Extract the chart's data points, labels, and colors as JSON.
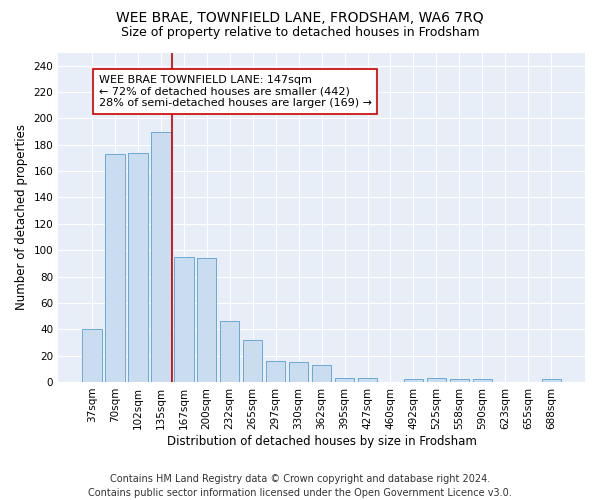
{
  "title": "WEE BRAE, TOWNFIELD LANE, FRODSHAM, WA6 7RQ",
  "subtitle": "Size of property relative to detached houses in Frodsham",
  "xlabel": "Distribution of detached houses by size in Frodsham",
  "ylabel": "Number of detached properties",
  "categories": [
    "37sqm",
    "70sqm",
    "102sqm",
    "135sqm",
    "167sqm",
    "200sqm",
    "232sqm",
    "265sqm",
    "297sqm",
    "330sqm",
    "362sqm",
    "395sqm",
    "427sqm",
    "460sqm",
    "492sqm",
    "525sqm",
    "558sqm",
    "590sqm",
    "623sqm",
    "655sqm",
    "688sqm"
  ],
  "values": [
    40,
    173,
    174,
    190,
    95,
    94,
    46,
    32,
    16,
    15,
    13,
    3,
    3,
    0,
    2,
    3,
    2,
    2,
    0,
    0,
    2
  ],
  "bar_color": "#c9dcf0",
  "bar_edge_color": "#6aaad4",
  "vline_x": 3.5,
  "vline_color": "#cc0000",
  "annotation_text": "WEE BRAE TOWNFIELD LANE: 147sqm\n← 72% of detached houses are smaller (442)\n28% of semi-detached houses are larger (169) →",
  "annotation_box_color": "white",
  "annotation_box_edge": "#cc0000",
  "ylim": [
    0,
    250
  ],
  "yticks": [
    0,
    20,
    40,
    60,
    80,
    100,
    120,
    140,
    160,
    180,
    200,
    220,
    240
  ],
  "background_color": "#e8eef8",
  "footer": "Contains HM Land Registry data © Crown copyright and database right 2024.\nContains public sector information licensed under the Open Government Licence v3.0.",
  "title_fontsize": 10,
  "subtitle_fontsize": 9,
  "axis_label_fontsize": 8.5,
  "tick_fontsize": 7.5,
  "annotation_fontsize": 8,
  "footer_fontsize": 7
}
